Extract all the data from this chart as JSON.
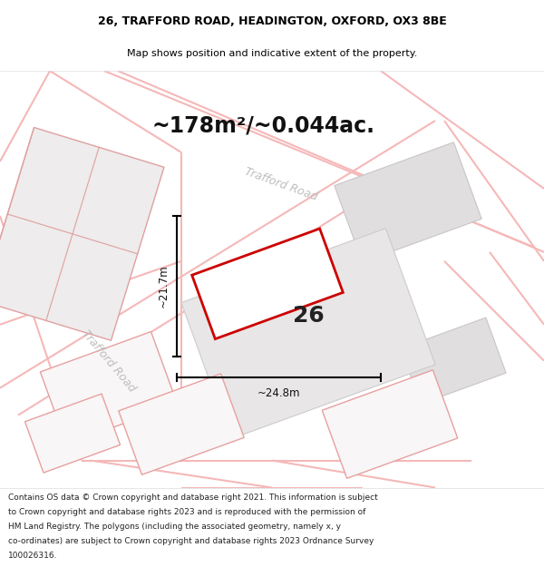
{
  "title_line1": "26, TRAFFORD ROAD, HEADINGTON, OXFORD, OX3 8BE",
  "title_line2": "Map shows position and indicative extent of the property.",
  "area_label": "~178m²/~0.044ac.",
  "number_label": "26",
  "width_label": "~24.8m",
  "height_label": "~21.7m",
  "footer_lines": [
    "Contains OS data © Crown copyright and database right 2021. This information is subject",
    "to Crown copyright and database rights 2023 and is reproduced with the permission of",
    "HM Land Registry. The polygons (including the associated geometry, namely x, y",
    "co-ordinates) are subject to Crown copyright and database rights 2023 Ordnance Survey",
    "100026316."
  ],
  "map_bg": "#f8f7f7",
  "plot_color": "#cc0000",
  "plot_fill": "#ffffff",
  "road_color": "#f5b8b8",
  "building_color": "#e0dede",
  "building_stroke": "#c8c5c5",
  "road_stroke": "#e8a8a8",
  "title_fontsize": 9,
  "subtitle_fontsize": 8,
  "area_fontsize": 17,
  "number_fontsize": 18,
  "dim_fontsize": 8.5,
  "footer_fontsize": 6.5,
  "road_label_color": "#c0bcbc",
  "road_label_size": 9
}
